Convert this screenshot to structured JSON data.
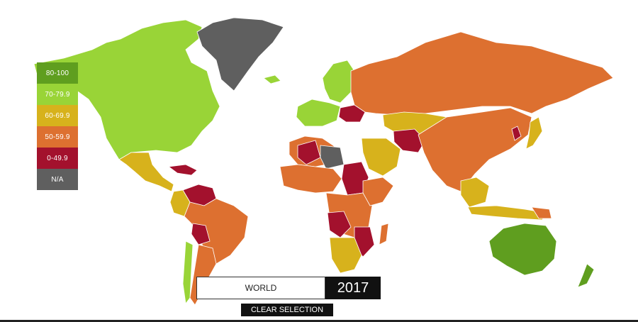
{
  "colors": {
    "band_80_100": "#5f9e1f",
    "band_70_79": "#99d437",
    "band_60_69": "#d7b21c",
    "band_50_59": "#dd7030",
    "band_0_49": "#a3112d",
    "band_na": "#5f5f5f"
  },
  "legend": [
    {
      "label": "80-100",
      "color": "#5f9e1f"
    },
    {
      "label": "70-79.9",
      "color": "#99d437"
    },
    {
      "label": "60-69.9",
      "color": "#d7b21c"
    },
    {
      "label": "50-59.9",
      "color": "#dd7030"
    },
    {
      "label": "0-49.9",
      "color": "#a3112d"
    },
    {
      "label": "N/A",
      "color": "#5f5f5f"
    }
  ],
  "controls": {
    "region": "WORLD",
    "year": "2017",
    "clear_label": "CLEAR SELECTION"
  }
}
